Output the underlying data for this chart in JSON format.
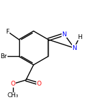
{
  "bg_color": "#ffffff",
  "atom_colors": {
    "N": "#0000ff",
    "O": "#ff0000",
    "Br": "#000000",
    "F": "#000000",
    "C": "#000000",
    "H": "#000000"
  },
  "bond_width": 1.0,
  "font_size_atom": 6.5
}
